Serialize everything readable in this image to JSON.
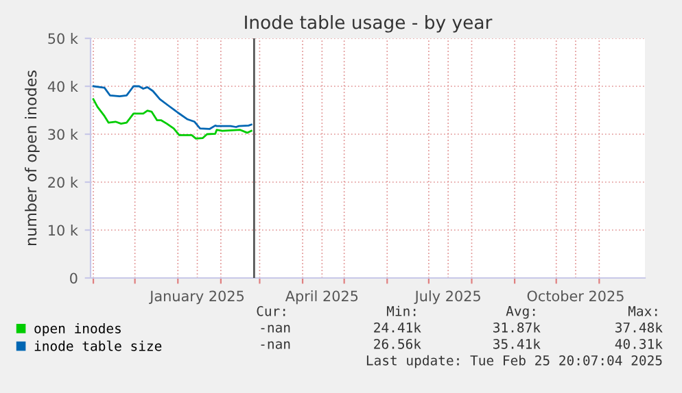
{
  "chart_data": {
    "type": "line",
    "title": "Inode table usage - by year",
    "ylabel": "number of open inodes",
    "x": [
      "2024-11-01",
      "2024-11-04",
      "2024-11-09",
      "2024-11-12",
      "2024-11-13",
      "2024-11-17",
      "2024-11-20",
      "2024-11-21",
      "2024-11-25",
      "2024-11-30",
      "2024-12-04",
      "2024-12-07",
      "2024-12-10",
      "2024-12-13",
      "2024-12-14",
      "2024-12-17",
      "2024-12-19",
      "2024-12-20",
      "2024-12-24",
      "2024-12-25",
      "2024-12-29",
      "2025-01-01",
      "2025-01-02",
      "2025-01-08",
      "2025-01-11",
      "2025-01-13",
      "2025-01-14",
      "2025-01-17",
      "2025-01-19",
      "2025-01-22",
      "2025-01-24",
      "2025-01-28",
      "2025-01-29",
      "2025-02-02",
      "2025-02-08",
      "2025-02-12",
      "2025-02-14",
      "2025-02-15",
      "2025-02-20",
      "2025-02-21",
      "2025-02-23"
    ],
    "series": [
      {
        "name": "open inodes",
        "color": "#00cc00",
        "values": [
          37300,
          35700,
          33800,
          32400,
          null,
          32600,
          null,
          32200,
          32400,
          34300,
          null,
          34300,
          34900,
          34700,
          null,
          32900,
          null,
          32900,
          32200,
          null,
          31200,
          null,
          29800,
          null,
          29800,
          null,
          29100,
          null,
          29200,
          30000,
          null,
          30100,
          30900,
          30700,
          null,
          null,
          null,
          30900,
          30300,
          null,
          30700
        ]
      },
      {
        "name": "inode table size",
        "color": "#0066b3",
        "values": [
          40000,
          null,
          39700,
          null,
          38100,
          null,
          37900,
          null,
          38100,
          40000,
          40000,
          39500,
          39800,
          null,
          39000,
          null,
          37300,
          null,
          null,
          36000,
          null,
          34500,
          null,
          33100,
          null,
          32600,
          null,
          31200,
          null,
          null,
          31100,
          31800,
          31700,
          null,
          31700,
          31500,
          31700,
          null,
          null,
          31800,
          32000
        ]
      }
    ],
    "xlim": [
      "2024-10-30",
      "2025-12-04"
    ],
    "xticks": [
      {
        "value": "2024-11-01",
        "label": null
      },
      {
        "value": "2024-12-01",
        "label": null
      },
      {
        "value": "2025-01-01",
        "label": null
      },
      {
        "value": "2025-01-15",
        "label": "January 2025"
      },
      {
        "value": "2025-02-01",
        "label": null
      },
      {
        "value": "2025-03-01",
        "label": null
      },
      {
        "value": "2025-04-01",
        "label": null
      },
      {
        "value": "2025-04-15",
        "label": "April 2025"
      },
      {
        "value": "2025-05-01",
        "label": null
      },
      {
        "value": "2025-06-01",
        "label": null
      },
      {
        "value": "2025-07-01",
        "label": null
      },
      {
        "value": "2025-07-15",
        "label": "July 2025"
      },
      {
        "value": "2025-08-01",
        "label": null
      },
      {
        "value": "2025-09-01",
        "label": null
      },
      {
        "value": "2025-10-01",
        "label": null
      },
      {
        "value": "2025-10-15",
        "label": "October 2025"
      },
      {
        "value": "2025-11-01",
        "label": null
      }
    ],
    "ylim": [
      0,
      50000
    ],
    "yticks": [
      0,
      {
        "value": 10000,
        "label": "10 k"
      },
      {
        "value": 20000,
        "label": "20 k"
      },
      {
        "value": 30000,
        "label": "30 k"
      },
      {
        "value": 40000,
        "label": "40 k"
      },
      {
        "value": 50000,
        "label": "50 k"
      }
    ],
    "ref_lines": [
      {
        "axis": "x",
        "value": "2025-02-25",
        "color": "#555555"
      }
    ],
    "grid": true,
    "legend": "bottom left",
    "annotations": [
      "Cur:",
      "Min:",
      "Avg:",
      "Max:",
      "-nan",
      "24.41k",
      "31.87k",
      "37.48k",
      "-nan",
      "26.56k",
      "35.41k",
      "40.31k",
      "Last update: Tue Feb 25 20:07:04 2025"
    ]
  }
}
